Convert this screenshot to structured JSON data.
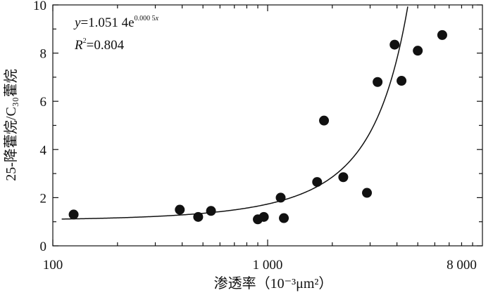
{
  "chart_data": {
    "type": "scatter",
    "xlabel": "渗透率（10⁻³μm²）",
    "ylabel": "25-降藿烷/C₃₀藿烷",
    "xscale": "log",
    "xlim": [
      100,
      10000
    ],
    "ylim": [
      0,
      10
    ],
    "x_tick_labels": [
      "100",
      "1 000",
      "8 000"
    ],
    "y_tick_labels": [
      "0",
      "2",
      "4",
      "6",
      "8",
      "10"
    ],
    "points": [
      {
        "x": 125,
        "y": 1.3
      },
      {
        "x": 390,
        "y": 1.5
      },
      {
        "x": 475,
        "y": 1.2
      },
      {
        "x": 545,
        "y": 1.45
      },
      {
        "x": 900,
        "y": 1.1
      },
      {
        "x": 960,
        "y": 1.2
      },
      {
        "x": 1150,
        "y": 2.0
      },
      {
        "x": 1190,
        "y": 1.15
      },
      {
        "x": 1700,
        "y": 2.65
      },
      {
        "x": 1830,
        "y": 5.2
      },
      {
        "x": 2250,
        "y": 2.85
      },
      {
        "x": 2900,
        "y": 2.2
      },
      {
        "x": 3250,
        "y": 6.8
      },
      {
        "x": 3900,
        "y": 8.35
      },
      {
        "x": 4200,
        "y": 6.85
      },
      {
        "x": 5000,
        "y": 8.1
      },
      {
        "x": 6500,
        "y": 8.75
      }
    ],
    "fit": {
      "a": 1.0514,
      "b": 0.0005
    },
    "equation": {
      "y_var": "y",
      "eq_main": "=1.051 4e",
      "eq_exp": "0.000 5",
      "exp_var": "x",
      "r_var": "R",
      "r_sup": "2",
      "r_val": "=0.804"
    }
  }
}
